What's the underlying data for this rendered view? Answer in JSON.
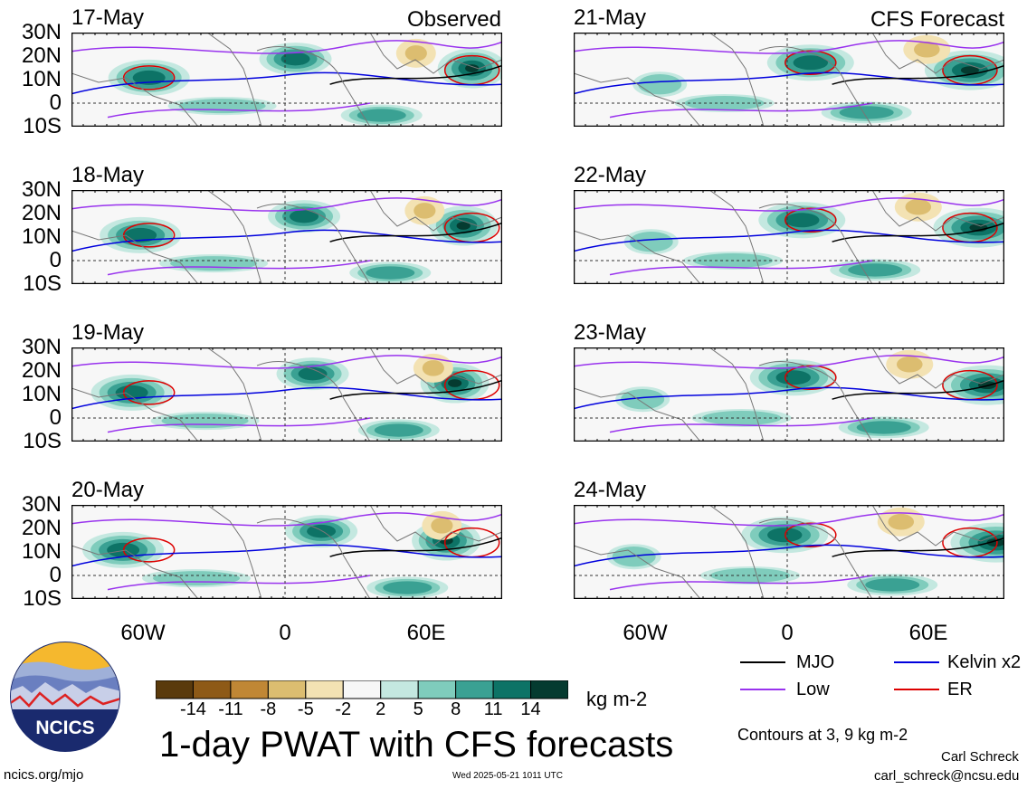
{
  "panels_left": [
    {
      "date": "17-May",
      "label": "Observed"
    },
    {
      "date": "18-May",
      "label": ""
    },
    {
      "date": "19-May",
      "label": ""
    },
    {
      "date": "20-May",
      "label": ""
    }
  ],
  "panels_right": [
    {
      "date": "21-May",
      "label": "CFS Forecast"
    },
    {
      "date": "22-May",
      "label": ""
    },
    {
      "date": "23-May",
      "label": ""
    },
    {
      "date": "24-May",
      "label": ""
    }
  ],
  "lat_labels": [
    "30N",
    "20N",
    "10N",
    "0",
    "10S"
  ],
  "lon_labels": [
    "60W",
    "0",
    "60E"
  ],
  "colorbar": {
    "ticks": [
      "-14",
      "-11",
      "-8",
      "-5",
      "-2",
      "2",
      "5",
      "8",
      "11",
      "14"
    ],
    "colors": [
      "#5a3a0c",
      "#8e5a17",
      "#c08735",
      "#dcbd70",
      "#f3e2b3",
      "#f7f7f7",
      "#c4e8e0",
      "#7fccbc",
      "#3aa193",
      "#0d7366",
      "#053b30"
    ],
    "units": "kg m-2"
  },
  "title": "1-day PWAT with CFS forecasts",
  "legend": [
    {
      "label": "MJO",
      "color": "#000000"
    },
    {
      "label": "Kelvin x2",
      "color": "#0000dd"
    },
    {
      "label": "Low",
      "color": "#9933ee"
    },
    {
      "label": "ER",
      "color": "#dd0000"
    }
  ],
  "contours_note": "Contours at 3, 9 kg m-2",
  "logo_text": "NCICS",
  "footer": {
    "url": "ncics.org/mjo",
    "timestamp": "Wed 2025-05-21 1011 UTC",
    "author": "Carl Schreck",
    "email": "carl_schreck@ncsu.edu"
  }
}
